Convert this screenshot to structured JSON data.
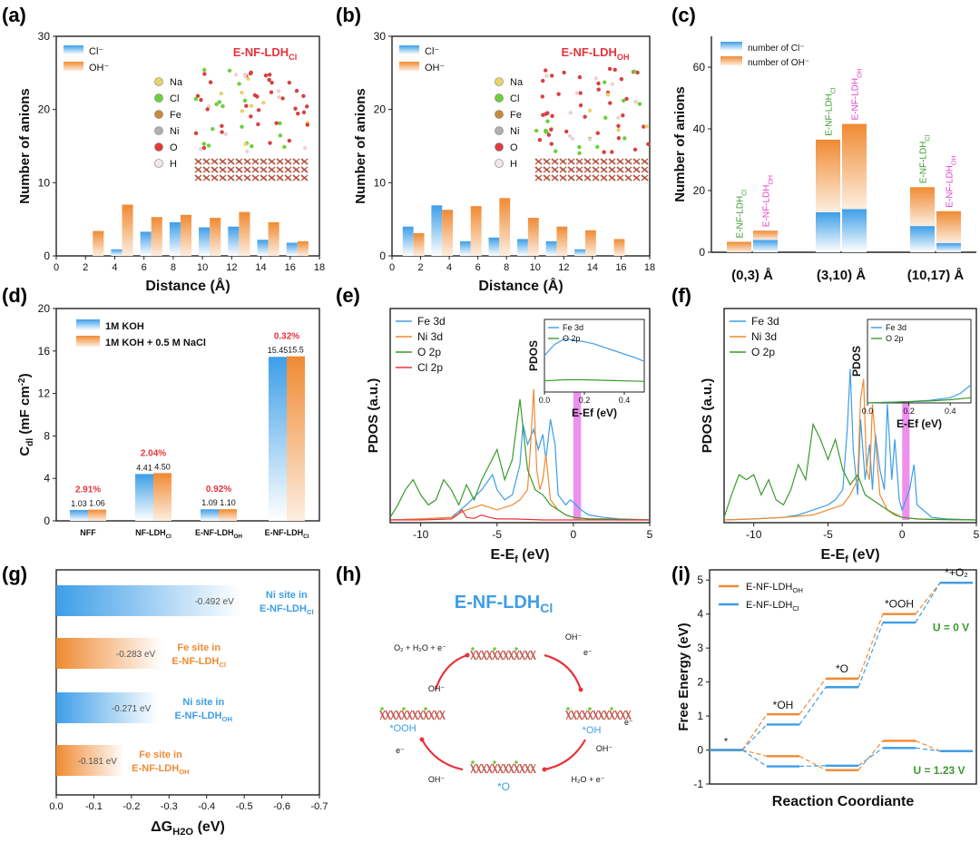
{
  "panels": {
    "a": "(a)",
    "b": "(b)",
    "c": "(c)",
    "d": "(d)",
    "e": "(e)",
    "f": "(f)",
    "g": "(g)",
    "h": "(h)",
    "i": "(i)"
  },
  "colors": {
    "blue": "#3d9ee8",
    "orange": "#f08a32",
    "green": "#3a9a2c",
    "red": "#e8333b",
    "magenta": "#e040c8",
    "pink": "#ee90ee"
  },
  "chart_data": [
    {
      "id": "a",
      "type": "bar",
      "title": "E-NF-LDH",
      "title_sub": "Cl",
      "xlabel": "Distance (Å)",
      "ylabel": "Number of anions",
      "xlim": [
        0,
        18
      ],
      "ylim": [
        0,
        30
      ],
      "xticks": [
        "0",
        "2",
        "4",
        "6",
        "8",
        "10",
        "12",
        "14",
        "16",
        "18"
      ],
      "yticks": [
        "0",
        "10",
        "20",
        "30"
      ],
      "series": [
        {
          "name": "Cl⁻",
          "x": [
            2.5,
            4.5,
            6.5,
            8.5,
            10.5,
            12.5,
            14.5,
            16.5
          ],
          "values": [
            0,
            0.9,
            3.3,
            4.6,
            3.9,
            4.0,
            2.2,
            1.8
          ]
        },
        {
          "name": "OH⁻",
          "x": [
            2.5,
            4.5,
            6.5,
            8.5,
            10.5,
            12.5,
            14.5,
            16.5
          ],
          "values": [
            3.4,
            7.0,
            5.3,
            5.6,
            5.2,
            6.0,
            4.6,
            2.0
          ]
        }
      ],
      "structure_legend": [
        "Na",
        "Cl",
        "Fe",
        "Ni",
        "O",
        "H"
      ]
    },
    {
      "id": "b",
      "type": "bar",
      "title": "E-NF-LDH",
      "title_sub": "OH",
      "xlabel": "Distance (Å)",
      "ylabel": "Number of anions",
      "xlim": [
        0,
        18
      ],
      "ylim": [
        0,
        30
      ],
      "xticks": [
        "0",
        "2",
        "4",
        "6",
        "8",
        "10",
        "12",
        "14",
        "16",
        "18"
      ],
      "yticks": [
        "0",
        "10",
        "20",
        "30"
      ],
      "series": [
        {
          "name": "Cl⁻",
          "x": [
            1.5,
            3.5,
            5.5,
            7.5,
            9.5,
            11.5,
            13.5,
            15.5
          ],
          "values": [
            4.0,
            6.9,
            2.0,
            2.5,
            2.3,
            2.0,
            0.9,
            0
          ]
        },
        {
          "name": "OH⁻",
          "x": [
            1.5,
            3.5,
            5.5,
            7.5,
            9.5,
            11.5,
            13.5,
            15.5
          ],
          "values": [
            3.1,
            6.3,
            6.8,
            7.9,
            5.2,
            4.0,
            3.5,
            2.3
          ]
        }
      ],
      "structure_legend": [
        "Na",
        "Cl",
        "Fe",
        "Ni",
        "O",
        "H"
      ]
    },
    {
      "id": "c",
      "type": "bar",
      "ylabel": "Number of anions",
      "ylim": [
        0,
        70
      ],
      "yticks": [
        "0",
        "20",
        "40",
        "60"
      ],
      "categories": [
        "(0,3) Å",
        "(3,10) Å",
        "(10,17) Å"
      ],
      "legend": [
        "number of Cl⁻",
        "number of OH⁻"
      ],
      "bar_labels": [
        {
          "main": "E-NF-LDH",
          "sub": "Cl"
        },
        {
          "main": "E-NF-LDH",
          "sub": "OH"
        }
      ],
      "series": [
        {
          "name": "E-NF-LDH Cl",
          "cl": [
            0,
            13,
            8.5
          ],
          "oh": [
            3.4,
            23.5,
            12.6
          ]
        },
        {
          "name": "E-NF-LDH OH",
          "cl": [
            4.0,
            14,
            3.0
          ],
          "oh": [
            3.0,
            27.6,
            10.3
          ]
        }
      ]
    },
    {
      "id": "d",
      "type": "bar",
      "ylabel": "C",
      "ylabel_sub": "dl",
      "ylabel_unit": "(mF cm",
      "ylabel_sup": "-2",
      "ylabel_end": ")",
      "ylim": [
        0,
        20
      ],
      "yticks": [
        "0",
        "4",
        "8",
        "12",
        "16",
        "20"
      ],
      "categories": [
        "NFF",
        "NF-LDH",
        "E-NF-LDH",
        "E-NF-LDH"
      ],
      "category_subs": [
        "",
        "Cl",
        "OH",
        "Cl"
      ],
      "series": [
        {
          "name": "1M KOH",
          "values": [
            1.03,
            4.41,
            1.09,
            15.45
          ],
          "labels": [
            "1.03",
            "4.41",
            "1.09",
            "15.45"
          ]
        },
        {
          "name": "1M KOH + 0.5 M NaCl",
          "values": [
            1.06,
            4.5,
            1.1,
            15.5
          ],
          "labels": [
            "1.06",
            "4.50",
            "1.10",
            "15.5"
          ]
        }
      ],
      "percent_labels": [
        "2.91%",
        "2.04%",
        "0.92%",
        "0.32%"
      ]
    },
    {
      "id": "e",
      "type": "line",
      "xlabel": "E-E",
      "xlabel_sub": "f",
      "xlabel_unit": " (eV)",
      "ylabel": "PDOS (a.u.)",
      "xlim": [
        -12,
        5
      ],
      "xticks": [
        "-10",
        "-5",
        "0",
        "5"
      ],
      "legend": [
        "Fe 3d",
        "Ni 3d",
        "O 2p",
        "Cl 2p"
      ],
      "series": [
        {
          "name": "Fe 3d",
          "x": [
            -12,
            -10,
            -8,
            -7,
            -6,
            -5.3,
            -5,
            -4.5,
            -4,
            -3.5,
            -3.3,
            -3,
            -2.6,
            -2.3,
            -2,
            -1.8,
            -1.5,
            -1.2,
            -1,
            -0.5,
            -0.2,
            0,
            0.5,
            1,
            2,
            3,
            4,
            5
          ],
          "y": [
            0,
            0.02,
            0.05,
            0.3,
            0.6,
            0.9,
            0.6,
            0.4,
            0.5,
            1.1,
            1.9,
            1.5,
            1.8,
            1.4,
            1.7,
            1.2,
            2.0,
            1.5,
            0.5,
            0.3,
            0.4,
            0.35,
            0.2,
            0.1,
            0.05,
            0.02,
            0.01,
            0
          ]
        },
        {
          "name": "Ni 3d",
          "x": [
            -12,
            -10,
            -8,
            -7,
            -6,
            -5,
            -4,
            -3.5,
            -3,
            -2.8,
            -2.6,
            -2.4,
            -2.2,
            -2,
            -1.8,
            -1.5,
            -1,
            -0.5,
            0,
            1,
            2,
            3,
            5
          ],
          "y": [
            0,
            0.02,
            0.05,
            0.2,
            0.3,
            0.2,
            0.3,
            0.4,
            0.6,
            1.5,
            2.6,
            1.0,
            0.6,
            0.8,
            1.3,
            0.4,
            0.2,
            0.1,
            0.05,
            0.02,
            0.01,
            0,
            0
          ]
        },
        {
          "name": "O 2p",
          "x": [
            -12,
            -11.5,
            -11,
            -10.5,
            -10,
            -9.5,
            -9,
            -8.5,
            -8,
            -7.5,
            -7,
            -6.5,
            -6,
            -5.5,
            -5,
            -4.5,
            -4,
            -3.5,
            -3,
            -2.5,
            -2,
            -1.5,
            -1,
            -0.5,
            0,
            1,
            2,
            3,
            5
          ],
          "y": [
            0.05,
            0.3,
            0.6,
            0.8,
            0.5,
            0.3,
            0.4,
            0.8,
            0.6,
            0.3,
            0.7,
            0.4,
            0.8,
            1.1,
            1.4,
            0.8,
            1.2,
            2.4,
            1.0,
            0.6,
            0.5,
            0.3,
            0.2,
            0.1,
            0.05,
            0.02,
            0.02,
            0.01,
            0
          ]
        },
        {
          "name": "Cl 2p",
          "x": [
            -12,
            -10,
            -8,
            -7.6,
            -7.3,
            -7,
            -6.5,
            -6,
            -5.5,
            -5,
            -4,
            -3,
            -2,
            0,
            5
          ],
          "y": [
            0,
            0,
            0.02,
            0.1,
            0.2,
            0.05,
            0.03,
            0.1,
            0.05,
            0.02,
            0.02,
            0.01,
            0,
            0,
            0
          ]
        }
      ],
      "highlight_x": [
        0,
        0.5
      ],
      "inset": {
        "xlabel": "E-Ef (eV)",
        "ylabel": "PDOS",
        "xlim": [
          0,
          0.5
        ],
        "xticks": [
          "0.0",
          "0.2",
          "0.4"
        ],
        "legend": [
          "Fe 3d",
          "O 2p"
        ],
        "series": [
          {
            "name": "Fe 3d",
            "x": [
              0,
              0.05,
              0.1,
              0.15,
              0.2,
              0.25,
              0.3,
              0.35,
              0.4,
              0.45,
              0.5
            ],
            "y": [
              0.65,
              0.85,
              0.95,
              0.93,
              0.9,
              0.86,
              0.8,
              0.74,
              0.68,
              0.62,
              0.55
            ]
          },
          {
            "name": "O 2p",
            "x": [
              0,
              0.1,
              0.2,
              0.3,
              0.4,
              0.5
            ],
            "y": [
              0.2,
              0.22,
              0.22,
              0.21,
              0.2,
              0.19
            ]
          }
        ]
      }
    },
    {
      "id": "f",
      "type": "line",
      "xlabel": "E-E",
      "xlabel_sub": "f",
      "xlabel_unit": " (eV)",
      "ylabel": "PDOS (a.u.)",
      "xlim": [
        -12,
        5
      ],
      "xticks": [
        "-10",
        "-5",
        "0",
        "5"
      ],
      "legend": [
        "Fe 3d",
        "Ni 3d",
        "O 2p"
      ],
      "series": [
        {
          "name": "Fe 3d",
          "x": [
            -12,
            -10,
            -8,
            -7,
            -6,
            -5,
            -4.5,
            -4,
            -3.7,
            -3.5,
            -3.3,
            -3,
            -2.8,
            -2.5,
            -2.2,
            -2,
            -1.8,
            -1.5,
            -1.2,
            -1,
            -0.7,
            -0.5,
            -0.2,
            0,
            0.5,
            0.8,
            1,
            2,
            3,
            5
          ],
          "y": [
            0,
            0.02,
            0.05,
            0.1,
            0.2,
            0.3,
            0.4,
            0.6,
            1.8,
            3.0,
            1.4,
            0.5,
            2.0,
            0.8,
            1.5,
            0.6,
            1.7,
            1.0,
            0.6,
            2.3,
            0.8,
            1.6,
            0.4,
            0.2,
            0.6,
            1.1,
            0.3,
            0.05,
            0.02,
            0
          ]
        },
        {
          "name": "Ni 3d",
          "x": [
            -12,
            -10,
            -8,
            -6,
            -5,
            -4,
            -3.5,
            -3,
            -2.8,
            -2.6,
            -2.4,
            -2.2,
            -2,
            -1.5,
            -1,
            0,
            1,
            2,
            5
          ],
          "y": [
            0,
            0.02,
            0.05,
            0.1,
            0.2,
            0.3,
            0.5,
            0.8,
            2.4,
            2.8,
            1.0,
            0.8,
            2.3,
            0.5,
            0.2,
            0.05,
            0.02,
            0.01,
            0
          ]
        },
        {
          "name": "O 2p",
          "x": [
            -12,
            -11.5,
            -11,
            -10.5,
            -10,
            -9.5,
            -9,
            -8.5,
            -8,
            -7.5,
            -7,
            -6.5,
            -6,
            -5.5,
            -5,
            -4.5,
            -4,
            -3.5,
            -3,
            -2.5,
            -2,
            -1.5,
            -1,
            -0.5,
            0,
            1,
            2,
            5
          ],
          "y": [
            0.05,
            0.5,
            0.9,
            0.8,
            0.9,
            0.5,
            0.8,
            0.4,
            0.3,
            0.6,
            1.1,
            0.8,
            1.9,
            1.6,
            1.2,
            1.6,
            1.0,
            0.7,
            0.9,
            0.5,
            0.4,
            0.3,
            0.2,
            0.1,
            0.05,
            0.02,
            0.01,
            0
          ]
        }
      ],
      "highlight_x": [
        0,
        0.5
      ],
      "inset": {
        "xlabel": "E-Ef (eV)",
        "ylabel": "PDOS",
        "xlim": [
          0,
          0.5
        ],
        "xticks": [
          "0.0",
          "0.2",
          "0.4"
        ],
        "legend": [
          "Fe 3d",
          "O 2p"
        ],
        "series": [
          {
            "name": "Fe 3d",
            "x": [
              0,
              0.1,
              0.2,
              0.3,
              0.4,
              0.45,
              0.5
            ],
            "y": [
              0,
              0.01,
              0.02,
              0.04,
              0.08,
              0.15,
              0.28
            ]
          },
          {
            "name": "O 2p",
            "x": [
              0,
              0.1,
              0.2,
              0.3,
              0.4,
              0.5
            ],
            "y": [
              0,
              0.01,
              0.02,
              0.03,
              0.05,
              0.08
            ]
          }
        ]
      }
    },
    {
      "id": "g",
      "type": "bar",
      "orientation": "horizontal",
      "xlabel": "ΔG",
      "xlabel_sub": "H2O",
      "xlabel_unit": " (eV)",
      "xlim": [
        0,
        -0.7
      ],
      "xticks": [
        "0.0",
        "-0.1",
        "-0.2",
        "-0.3",
        "-0.4",
        "-0.5",
        "-0.6",
        "-0.7"
      ],
      "bars": [
        {
          "value": -0.492,
          "label": "-0.492 eV",
          "site": "Ni site in",
          "material": "E-NF-LDH",
          "sub": "Cl",
          "color": "blue"
        },
        {
          "value": -0.283,
          "label": "-0.283 eV",
          "site": "Fe site in",
          "material": "E-NF-LDH",
          "sub": "Cl",
          "color": "orange"
        },
        {
          "value": -0.271,
          "label": "-0.271 eV",
          "site": "Ni site in",
          "material": "E-NF-LDH",
          "sub": "OH",
          "color": "blue"
        },
        {
          "value": -0.181,
          "label": "-0.181 eV",
          "site": "Fe site in",
          "material": "E-NF-LDH",
          "sub": "OH",
          "color": "orange"
        }
      ]
    },
    {
      "id": "i",
      "type": "line",
      "xlabel": "Reaction Coordiante",
      "ylabel": "Free Energy (eV)",
      "ylim": [
        -1,
        5.3
      ],
      "yticks": [
        "-1",
        "0",
        "1",
        "2",
        "3",
        "4",
        "5"
      ],
      "legend": [
        "E-NF-LDH",
        "E-NF-LDH"
      ],
      "legend_subs": [
        "OH",
        "Cl"
      ],
      "step_labels": [
        "*",
        "*OH",
        "*O",
        "*OOH",
        "*+O₂"
      ],
      "series": [
        {
          "name": "E-NF-LDH OH U=0",
          "values": [
            0,
            1.05,
            2.1,
            4.0,
            4.92
          ]
        },
        {
          "name": "E-NF-LDH Cl U=0",
          "values": [
            0,
            0.75,
            1.85,
            3.75,
            4.92
          ]
        },
        {
          "name": "E-NF-LDH OH U=1.23",
          "values": [
            0,
            -0.18,
            -0.59,
            0.27,
            -0.03
          ]
        },
        {
          "name": "E-NF-LDH Cl U=1.23",
          "values": [
            0,
            -0.48,
            -0.46,
            0.06,
            -0.03
          ]
        }
      ],
      "annotations": [
        "U = 0 V",
        "U = 1.23 V"
      ]
    }
  ],
  "scheme_h": {
    "title": "E-NF-LDH",
    "title_sub": "Cl",
    "labels": [
      "O₂ + H₂O + e⁻",
      "OH⁻",
      "e⁻",
      "OH⁻",
      "e⁻",
      "OH⁻",
      "H₂O + e⁻",
      "e⁻",
      "OH⁻"
    ],
    "intermediates": [
      "*OOH",
      "*OH",
      "*O"
    ]
  }
}
